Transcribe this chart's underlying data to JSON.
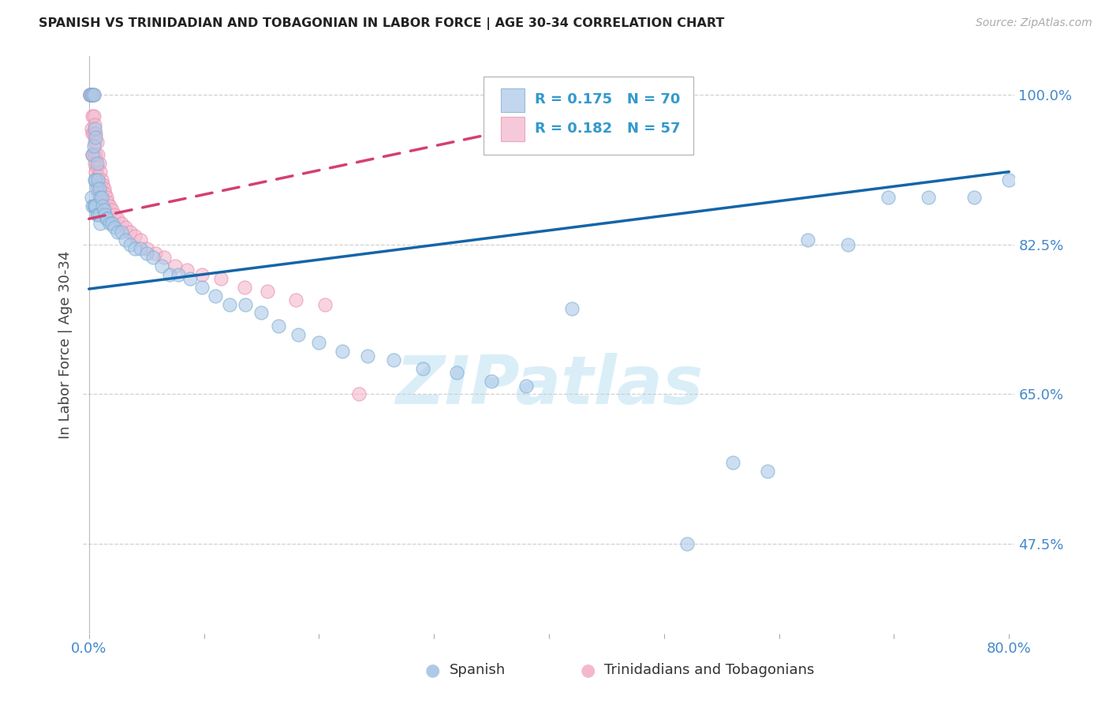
{
  "title": "SPANISH VS TRINIDADIAN AND TOBAGONIAN IN LABOR FORCE | AGE 30-34 CORRELATION CHART",
  "source_text": "Source: ZipAtlas.com",
  "ylabel": "In Labor Force | Age 30-34",
  "xlim": [
    -0.005,
    0.805
  ],
  "ylim": [
    0.37,
    1.045
  ],
  "xtick_positions": [
    0.0,
    0.1,
    0.2,
    0.3,
    0.4,
    0.5,
    0.6,
    0.7,
    0.8
  ],
  "xticklabels": [
    "0.0%",
    "",
    "",
    "",
    "",
    "",
    "",
    "",
    "80.0%"
  ],
  "ytick_positions": [
    0.475,
    0.65,
    0.825,
    1.0
  ],
  "yticklabels": [
    "47.5%",
    "65.0%",
    "82.5%",
    "100.0%"
  ],
  "blue_fill": "#aec9e8",
  "blue_edge": "#7aafd4",
  "pink_fill": "#f4b8ce",
  "pink_edge": "#e890b0",
  "blue_line_color": "#1565a8",
  "pink_line_color": "#d44070",
  "title_color": "#222222",
  "axis_tick_color": "#4488cc",
  "legend_text_color": "#3399cc",
  "watermark_color": "#daeef8",
  "R_blue": 0.175,
  "N_blue": 70,
  "R_pink": 0.182,
  "N_pink": 57,
  "blue_line_x": [
    0.0,
    0.8
  ],
  "blue_line_y": [
    0.773,
    0.91
  ],
  "pink_line_x": [
    0.0,
    0.37
  ],
  "pink_line_y": [
    0.855,
    0.96
  ],
  "blue_scatter_x": [
    0.001,
    0.002,
    0.002,
    0.003,
    0.003,
    0.003,
    0.004,
    0.004,
    0.004,
    0.005,
    0.005,
    0.005,
    0.006,
    0.006,
    0.006,
    0.007,
    0.007,
    0.007,
    0.008,
    0.008,
    0.009,
    0.009,
    0.01,
    0.01,
    0.011,
    0.012,
    0.013,
    0.014,
    0.015,
    0.016,
    0.018,
    0.02,
    0.022,
    0.025,
    0.028,
    0.032,
    0.036,
    0.04,
    0.045,
    0.05,
    0.056,
    0.063,
    0.07,
    0.078,
    0.088,
    0.098,
    0.11,
    0.122,
    0.136,
    0.15,
    0.165,
    0.182,
    0.2,
    0.22,
    0.242,
    0.265,
    0.29,
    0.32,
    0.35,
    0.38,
    0.42,
    0.52,
    0.56,
    0.59,
    0.625,
    0.66,
    0.695,
    0.73,
    0.77,
    0.8
  ],
  "blue_scatter_y": [
    1.0,
    1.0,
    0.88,
    1.0,
    0.93,
    0.87,
    1.0,
    0.94,
    0.87,
    0.96,
    0.9,
    0.87,
    0.95,
    0.9,
    0.87,
    0.92,
    0.89,
    0.86,
    0.9,
    0.86,
    0.89,
    0.86,
    0.88,
    0.85,
    0.88,
    0.87,
    0.865,
    0.86,
    0.855,
    0.855,
    0.85,
    0.85,
    0.845,
    0.84,
    0.84,
    0.83,
    0.825,
    0.82,
    0.82,
    0.815,
    0.81,
    0.8,
    0.79,
    0.79,
    0.785,
    0.775,
    0.765,
    0.755,
    0.755,
    0.745,
    0.73,
    0.72,
    0.71,
    0.7,
    0.695,
    0.69,
    0.68,
    0.675,
    0.665,
    0.66,
    0.75,
    0.475,
    0.57,
    0.56,
    0.83,
    0.825,
    0.88,
    0.88,
    0.88,
    0.9
  ],
  "pink_scatter_x": [
    0.001,
    0.001,
    0.001,
    0.002,
    0.002,
    0.002,
    0.002,
    0.003,
    0.003,
    0.003,
    0.003,
    0.004,
    0.004,
    0.004,
    0.004,
    0.005,
    0.005,
    0.005,
    0.006,
    0.006,
    0.006,
    0.007,
    0.007,
    0.007,
    0.008,
    0.008,
    0.008,
    0.009,
    0.009,
    0.01,
    0.011,
    0.012,
    0.013,
    0.014,
    0.015,
    0.016,
    0.018,
    0.02,
    0.022,
    0.025,
    0.028,
    0.032,
    0.036,
    0.04,
    0.045,
    0.05,
    0.058,
    0.065,
    0.075,
    0.085,
    0.098,
    0.115,
    0.135,
    0.155,
    0.18,
    0.205,
    0.235
  ],
  "pink_scatter_y": [
    1.0,
    1.0,
    1.0,
    1.0,
    1.0,
    1.0,
    0.96,
    1.0,
    0.975,
    0.955,
    0.93,
    1.0,
    0.975,
    0.955,
    0.93,
    0.965,
    0.945,
    0.92,
    0.955,
    0.93,
    0.91,
    0.945,
    0.915,
    0.895,
    0.93,
    0.905,
    0.885,
    0.92,
    0.895,
    0.91,
    0.9,
    0.895,
    0.89,
    0.885,
    0.88,
    0.875,
    0.87,
    0.865,
    0.86,
    0.855,
    0.85,
    0.845,
    0.84,
    0.835,
    0.83,
    0.82,
    0.815,
    0.81,
    0.8,
    0.795,
    0.79,
    0.785,
    0.775,
    0.77,
    0.76,
    0.755,
    0.65
  ]
}
